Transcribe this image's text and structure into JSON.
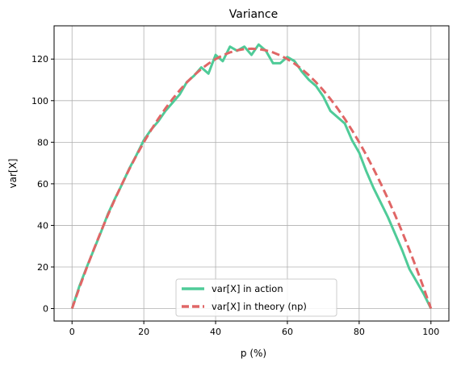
{
  "chart_data": {
    "type": "line",
    "title": "Variance",
    "xlabel": "p (%)",
    "ylabel": "var[X]",
    "xlim": [
      -5,
      105
    ],
    "ylim": [
      -6,
      136
    ],
    "xticks": [
      0,
      20,
      40,
      60,
      80,
      100
    ],
    "yticks": [
      0,
      20,
      40,
      60,
      80,
      100,
      120
    ],
    "grid": true,
    "legend_position": "bottom-center",
    "x": [
      0,
      2,
      4,
      6,
      8,
      10,
      12,
      14,
      16,
      18,
      20,
      22,
      24,
      26,
      28,
      30,
      32,
      34,
      36,
      38,
      40,
      42,
      44,
      46,
      48,
      50,
      52,
      54,
      56,
      58,
      60,
      62,
      64,
      66,
      68,
      70,
      72,
      74,
      76,
      78,
      80,
      82,
      84,
      86,
      88,
      90,
      92,
      94,
      96,
      98,
      100
    ],
    "series": [
      {
        "name": "var[X] in action",
        "color": "#4fcb98",
        "style": "solid",
        "values": [
          0,
          10.5,
          19.5,
          28,
          36.5,
          45.5,
          53,
          60,
          67.5,
          74,
          81,
          86,
          90,
          95,
          99,
          103,
          109,
          112,
          116,
          113,
          122,
          119,
          126,
          124,
          126,
          122,
          127,
          124,
          118,
          118,
          121,
          119,
          114,
          110,
          107,
          102,
          95,
          92,
          89,
          81,
          75,
          66,
          58,
          51,
          44,
          36,
          28,
          19,
          13,
          7,
          0
        ]
      },
      {
        "name": "var[X] in theory (np)",
        "color": "#e06666",
        "style": "dashed",
        "values": [
          0,
          9.8,
          19.2,
          28.2,
          36.8,
          45,
          52.8,
          60.2,
          67.2,
          73.8,
          80,
          85.8,
          91.2,
          96.2,
          100.8,
          105,
          108.8,
          112.2,
          115.2,
          117.8,
          120,
          121.8,
          123.2,
          124.2,
          124.8,
          125,
          124.8,
          124.2,
          123.2,
          121.8,
          120,
          117.8,
          115.2,
          112.2,
          108.8,
          105,
          100.8,
          96.2,
          91.2,
          85.8,
          80,
          73.8,
          67.2,
          60.2,
          52.8,
          45,
          36.8,
          28.2,
          19.2,
          9.8,
          0
        ]
      }
    ]
  }
}
